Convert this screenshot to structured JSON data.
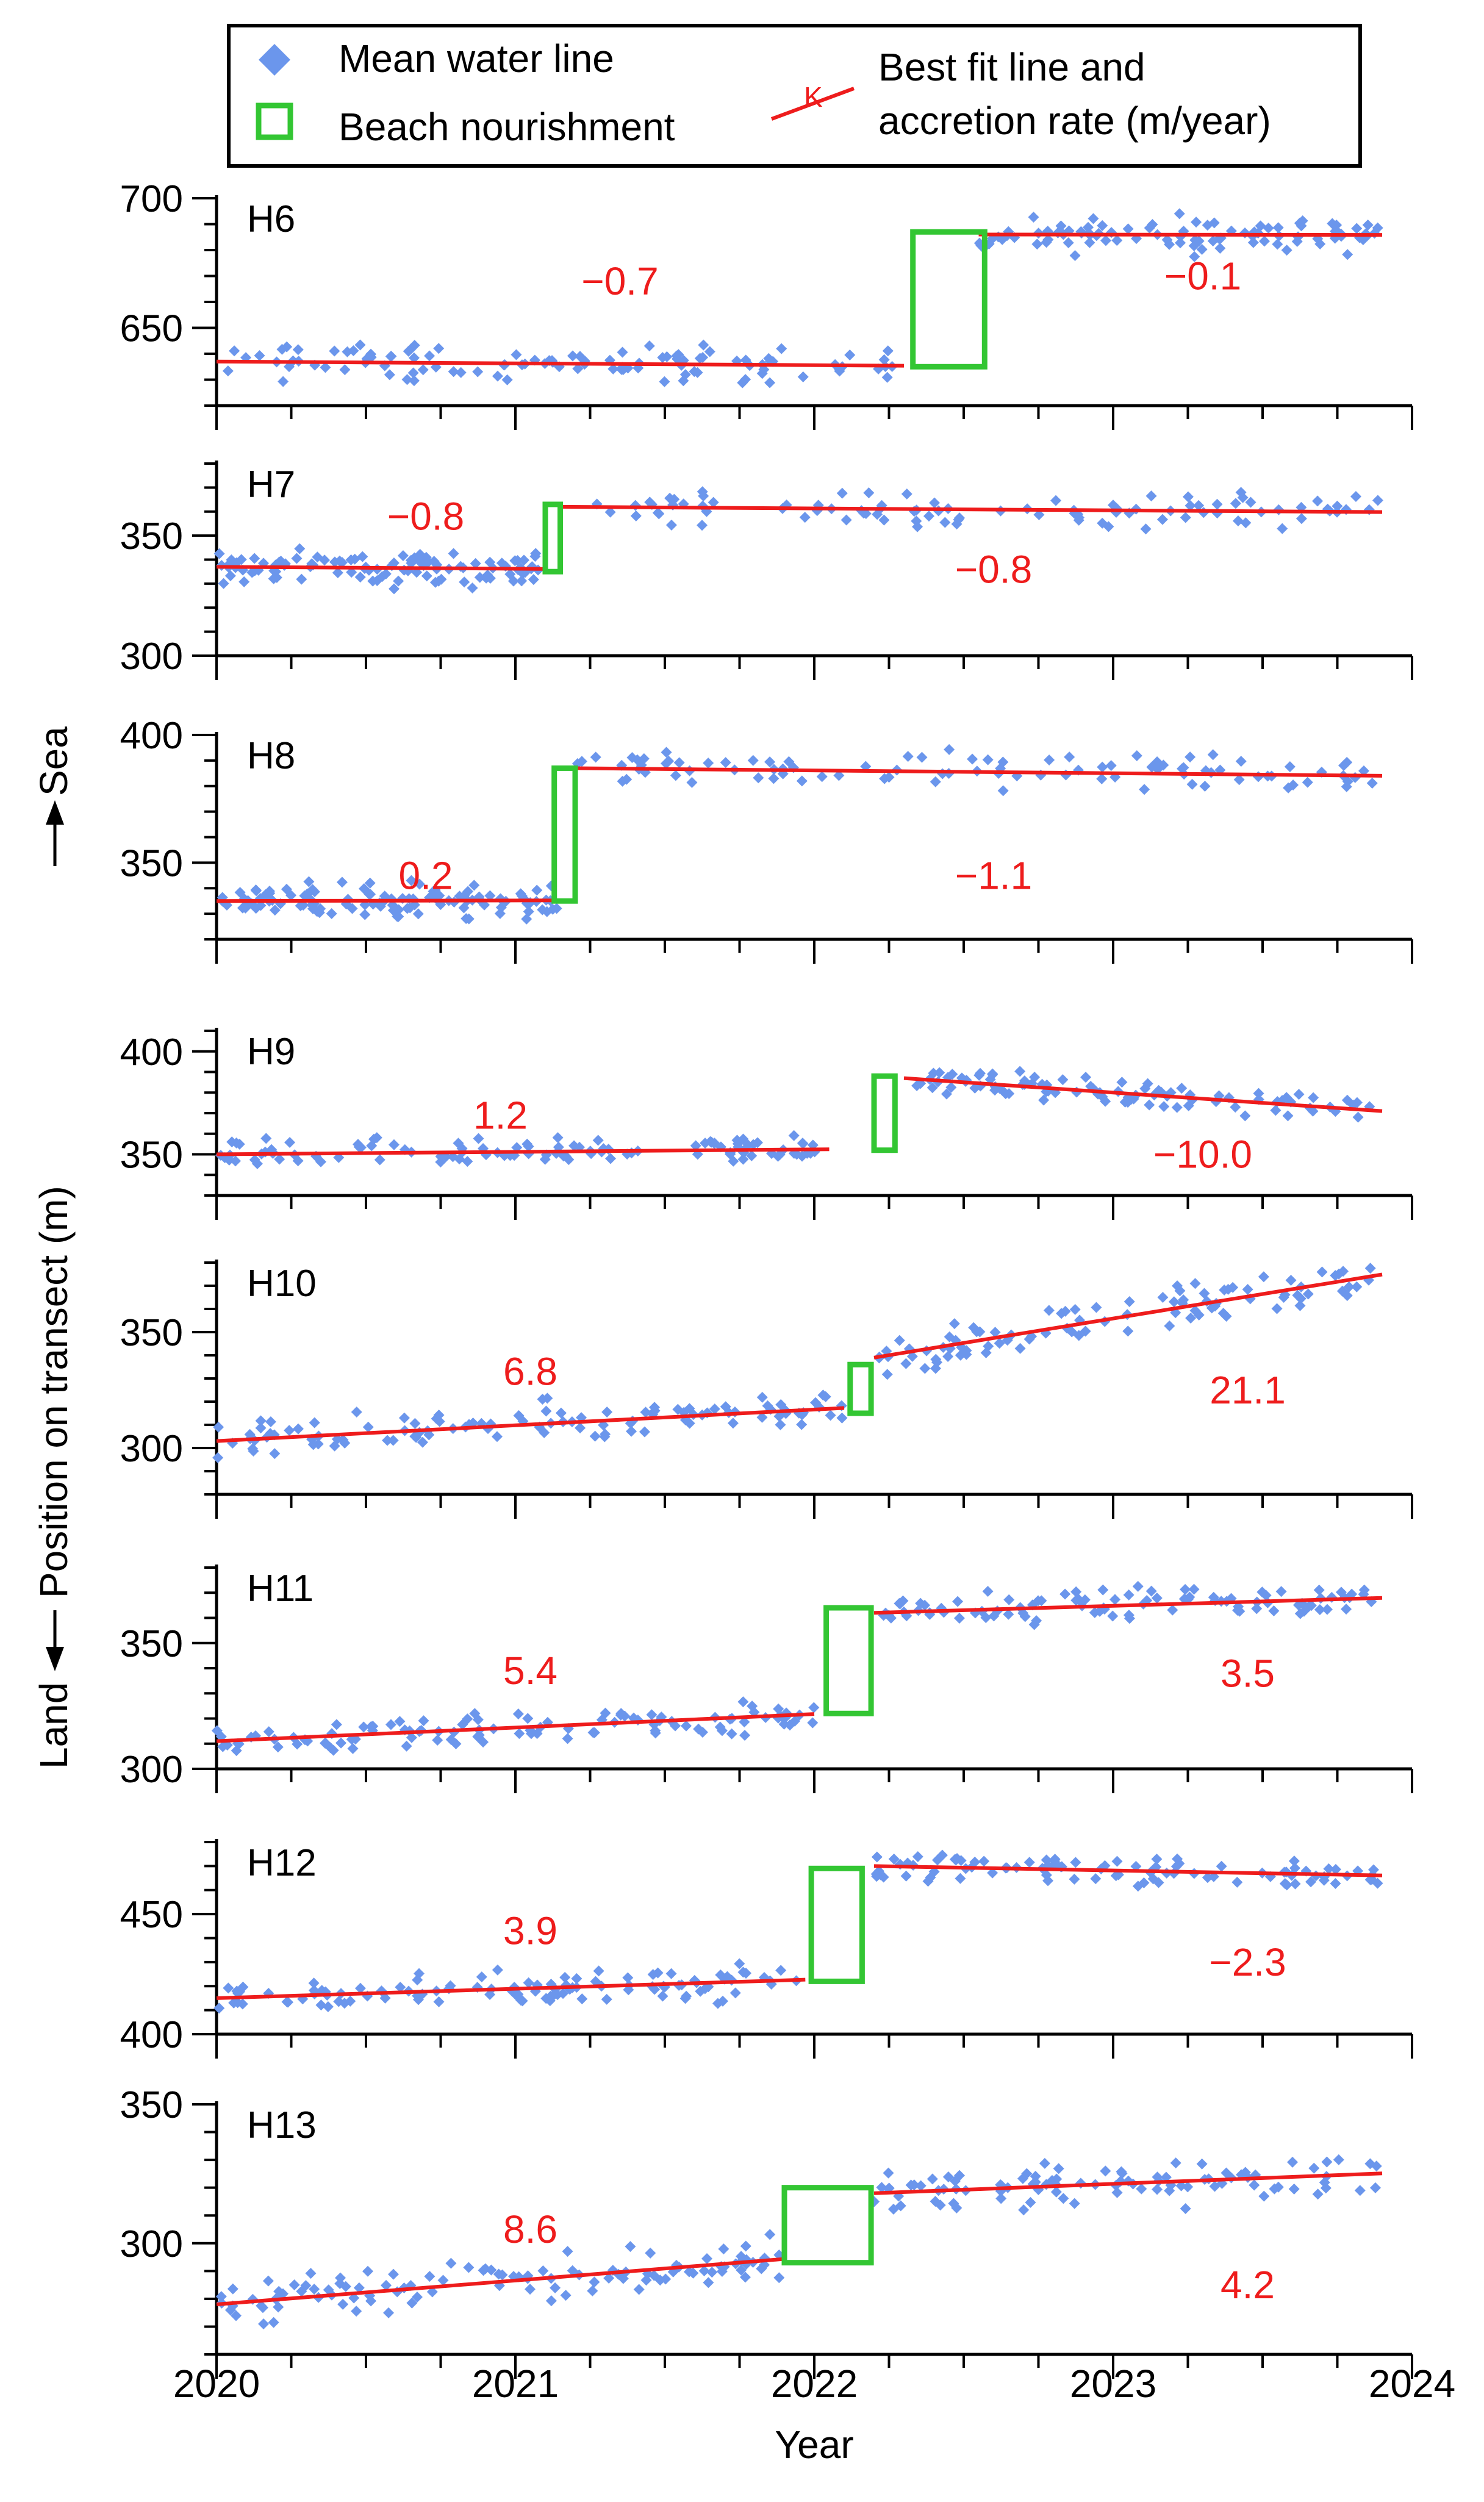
{
  "legend": {
    "mean_label": "Mean water line",
    "nourish_label": "Beach nourishment",
    "fit_label_1": "Best fit line and",
    "fit_label_2": "accretion rate (m/year)",
    "fit_symbol": "K"
  },
  "axes": {
    "xlabel": "Year",
    "ylabel_land": "Land",
    "ylabel_mid": "Position on transect (m)",
    "ylabel_sea": "Sea",
    "xticks": [
      "2020",
      "2021",
      "2022",
      "2023",
      "2024"
    ]
  },
  "colors": {
    "points": "#6b96ec",
    "fit": "#ee1c1c",
    "box": "#33c633",
    "axis": "#000000"
  },
  "chart_data": {
    "type": "scatter",
    "xlim": [
      2020,
      2024
    ],
    "panels": [
      {
        "name": "H6",
        "ylim": [
          620,
          700
        ],
        "yticks": [
          "650",
          "700"
        ],
        "ytick_values": [
          650,
          700
        ],
        "before": {
          "x0": 2020.0,
          "x1": 2022.3,
          "y0": 637,
          "rate": -0.7,
          "label": "−0.7",
          "lx": 2021.35,
          "ly": 668
        },
        "after": {
          "x0": 2022.55,
          "x1": 2023.9,
          "y0": 686,
          "rate": -0.1,
          "label": "−0.1",
          "lx": 2023.3,
          "ly": 670
        },
        "nourish": {
          "x0": 2022.33,
          "x1": 2022.57,
          "y0": 635,
          "y1": 687
        }
      },
      {
        "name": "H7",
        "ylim": [
          300,
          380
        ],
        "yticks": [
          "300",
          "350"
        ],
        "ytick_values": [
          300,
          350
        ],
        "before": {
          "x0": 2020.0,
          "x1": 2021.1,
          "y0": 337,
          "rate": -0.8,
          "label": "−0.8",
          "lx": 2020.7,
          "ly": 358
        },
        "after": {
          "x0": 2021.15,
          "x1": 2023.9,
          "y0": 362,
          "rate": -0.8,
          "label": "−0.8",
          "lx": 2022.6,
          "ly": 336
        },
        "nourish": {
          "x0": 2021.1,
          "x1": 2021.15,
          "y0": 335,
          "y1": 363
        }
      },
      {
        "name": "H8",
        "ylim": [
          320,
          400
        ],
        "yticks": [
          "350",
          "400"
        ],
        "ytick_values": [
          350,
          400
        ],
        "before": {
          "x0": 2020.0,
          "x1": 2021.15,
          "y0": 335,
          "rate": 0.2,
          "label": "0.2",
          "lx": 2020.7,
          "ly": 345
        },
        "after": {
          "x0": 2021.2,
          "x1": 2023.9,
          "y0": 387,
          "rate": -1.1,
          "label": "−1.1",
          "lx": 2022.6,
          "ly": 345
        },
        "nourish": {
          "x0": 2021.13,
          "x1": 2021.2,
          "y0": 335,
          "y1": 387
        }
      },
      {
        "name": "H9",
        "ylim": [
          330,
          410
        ],
        "yticks": [
          "350",
          "400"
        ],
        "ytick_values": [
          350,
          400
        ],
        "before": {
          "x0": 2020.0,
          "x1": 2022.05,
          "y0": 350,
          "rate": 1.2,
          "label": "1.2",
          "lx": 2020.95,
          "ly": 369
        },
        "after": {
          "x0": 2022.3,
          "x1": 2023.9,
          "y0": 387,
          "rate": -10.0,
          "label": "−10.0",
          "lx": 2023.3,
          "ly": 350
        },
        "nourish": {
          "x0": 2022.2,
          "x1": 2022.27,
          "y0": 352,
          "y1": 388
        }
      },
      {
        "name": "H10",
        "ylim": [
          280,
          380
        ],
        "yticks": [
          "300",
          "350"
        ],
        "ytick_values": [
          300,
          350
        ],
        "before": {
          "x0": 2020.0,
          "x1": 2022.1,
          "y0": 303,
          "rate": 6.8,
          "label": "6.8",
          "lx": 2021.05,
          "ly": 333
        },
        "after": {
          "x0": 2022.2,
          "x1": 2023.9,
          "y0": 339,
          "rate": 21.1,
          "label": "21.1",
          "lx": 2023.45,
          "ly": 325
        },
        "nourish": {
          "x0": 2022.12,
          "x1": 2022.19,
          "y0": 315,
          "y1": 336
        }
      },
      {
        "name": "H11",
        "ylim": [
          300,
          380
        ],
        "yticks": [
          "300",
          "350"
        ],
        "ytick_values": [
          300,
          350
        ],
        "before": {
          "x0": 2020.0,
          "x1": 2022.0,
          "y0": 311,
          "rate": 5.4,
          "label": "5.4",
          "lx": 2021.05,
          "ly": 339
        },
        "after": {
          "x0": 2022.2,
          "x1": 2023.9,
          "y0": 362,
          "rate": 3.5,
          "label": "3.5",
          "lx": 2023.45,
          "ly": 338
        },
        "nourish": {
          "x0": 2022.04,
          "x1": 2022.19,
          "y0": 322,
          "y1": 364
        }
      },
      {
        "name": "H12",
        "ylim": [
          400,
          480
        ],
        "yticks": [
          "400",
          "450"
        ],
        "ytick_values": [
          400,
          450
        ],
        "before": {
          "x0": 2020.0,
          "x1": 2021.97,
          "y0": 415,
          "rate": 3.9,
          "label": "3.9",
          "lx": 2021.05,
          "ly": 443
        },
        "after": {
          "x0": 2022.2,
          "x1": 2023.9,
          "y0": 470,
          "rate": -2.3,
          "label": "−2.3",
          "lx": 2023.45,
          "ly": 430
        },
        "nourish": {
          "x0": 2021.99,
          "x1": 2022.16,
          "y0": 422,
          "y1": 469
        }
      },
      {
        "name": "H13",
        "ylim": [
          260,
          350
        ],
        "yticks": [
          "300",
          "350"
        ],
        "ytick_values": [
          300,
          350
        ],
        "before": {
          "x0": 2020.0,
          "x1": 2021.9,
          "y0": 278,
          "rate": 8.6,
          "label": "8.6",
          "lx": 2021.05,
          "ly": 305
        },
        "after": {
          "x0": 2022.2,
          "x1": 2023.9,
          "y0": 318,
          "rate": 4.2,
          "label": "4.2",
          "lx": 2023.45,
          "ly": 285
        },
        "nourish": {
          "x0": 2021.9,
          "x1": 2022.19,
          "y0": 293,
          "y1": 320
        }
      }
    ]
  }
}
